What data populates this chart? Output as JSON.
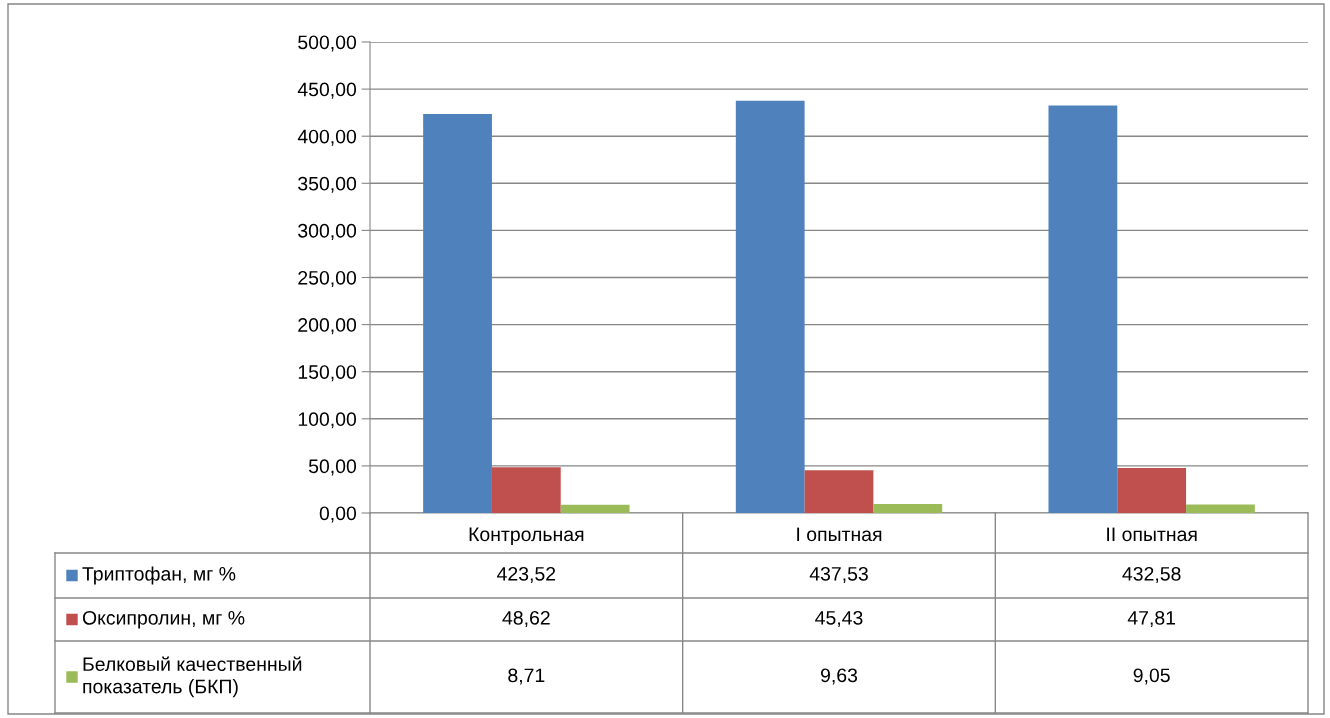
{
  "chart_data": {
    "type": "bar",
    "categories": [
      "Контрольная",
      "I опытная",
      "II опытная"
    ],
    "series": [
      {
        "name": "Триптофан, мг %",
        "color": "#4f81bd",
        "values": [
          423.52,
          437.53,
          432.58
        ],
        "value_labels": [
          "423,52",
          "437,53",
          "432,58"
        ]
      },
      {
        "name": "Оксипролин, мг %",
        "color": "#c0504d",
        "values": [
          48.62,
          45.43,
          47.81
        ],
        "value_labels": [
          "48,62",
          "45,43",
          "47,81"
        ]
      },
      {
        "name": "Белковый качественный\nпоказатель (БКП)",
        "color": "#9bbb59",
        "values": [
          8.71,
          9.63,
          9.05
        ],
        "value_labels": [
          "8,71",
          "9,63",
          "9,05"
        ]
      }
    ],
    "ylim": [
      0,
      500
    ],
    "yticks": [
      {
        "value": 0,
        "label": "0,00"
      },
      {
        "value": 50,
        "label": "50,00"
      },
      {
        "value": 100,
        "label": "100,00"
      },
      {
        "value": 150,
        "label": "150,00"
      },
      {
        "value": 200,
        "label": "200,00"
      },
      {
        "value": 250,
        "label": "250,00"
      },
      {
        "value": 300,
        "label": "300,00"
      },
      {
        "value": 350,
        "label": "350,00"
      },
      {
        "value": 400,
        "label": "400,00"
      },
      {
        "value": 450,
        "label": "450,00"
      },
      {
        "value": 500,
        "label": "500,00"
      }
    ],
    "grid": "y",
    "legend": "bottom"
  }
}
